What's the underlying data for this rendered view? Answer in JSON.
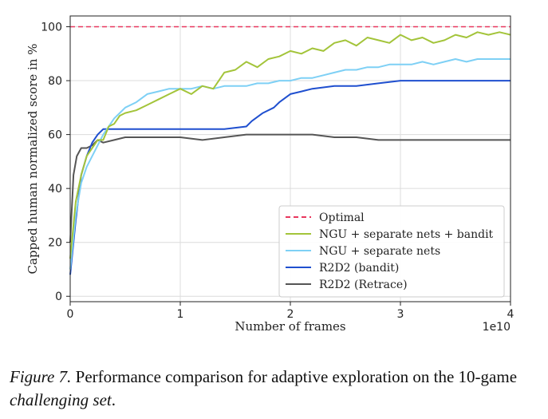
{
  "chart_data": {
    "type": "line",
    "title": "",
    "xlabel": "Number of  frames",
    "ylabel": "Capped human normalized score in %",
    "x_scale_label": "1e10",
    "xlim": [
      0,
      4
    ],
    "ylim": [
      -2,
      104
    ],
    "xticks": [
      "0",
      "1",
      "2",
      "3",
      "4"
    ],
    "yticks": [
      "0",
      "20",
      "40",
      "60",
      "80",
      "100"
    ],
    "grid": true,
    "legend_position": "lower-right",
    "series": [
      {
        "name": "Optimal",
        "color": "#e8375e",
        "style": "dashed",
        "x": [
          0,
          4
        ],
        "y": [
          100,
          100
        ]
      },
      {
        "name": "NGU + separate nets + bandit",
        "color": "#a3c43a",
        "style": "solid",
        "x": [
          0,
          0.05,
          0.1,
          0.15,
          0.2,
          0.25,
          0.3,
          0.35,
          0.4,
          0.45,
          0.5,
          0.6,
          0.7,
          0.8,
          0.9,
          1.0,
          1.1,
          1.2,
          1.3,
          1.4,
          1.5,
          1.6,
          1.7,
          1.8,
          1.9,
          2.0,
          2.1,
          2.2,
          2.3,
          2.4,
          2.5,
          2.6,
          2.7,
          2.8,
          2.9,
          3.0,
          3.1,
          3.2,
          3.3,
          3.4,
          3.5,
          3.6,
          3.7,
          3.8,
          3.9,
          4.0
        ],
        "y": [
          14,
          35,
          45,
          52,
          55,
          58,
          58,
          63,
          64,
          67,
          68,
          69,
          71,
          73,
          75,
          77,
          75,
          78,
          77,
          83,
          84,
          87,
          85,
          88,
          89,
          91,
          90,
          92,
          91,
          94,
          95,
          93,
          96,
          95,
          94,
          97,
          95,
          96,
          94,
          95,
          97,
          96,
          98,
          97,
          98,
          97
        ]
      },
      {
        "name": "NGU + separate nets",
        "color": "#7ed0f5",
        "style": "solid",
        "x": [
          0,
          0.05,
          0.1,
          0.15,
          0.2,
          0.25,
          0.3,
          0.35,
          0.4,
          0.45,
          0.5,
          0.6,
          0.7,
          0.8,
          0.9,
          1.0,
          1.1,
          1.2,
          1.3,
          1.4,
          1.5,
          1.6,
          1.7,
          1.8,
          1.9,
          2.0,
          2.1,
          2.2,
          2.3,
          2.4,
          2.5,
          2.6,
          2.7,
          2.8,
          2.9,
          3.0,
          3.1,
          3.2,
          3.3,
          3.4,
          3.5,
          3.6,
          3.7,
          3.8,
          3.9,
          4.0
        ],
        "y": [
          10,
          30,
          42,
          48,
          52,
          56,
          60,
          63,
          66,
          68,
          70,
          72,
          75,
          76,
          77,
          77,
          77,
          78,
          77,
          78,
          78,
          78,
          79,
          79,
          80,
          80,
          81,
          81,
          82,
          83,
          84,
          84,
          85,
          85,
          86,
          86,
          86,
          87,
          86,
          87,
          88,
          87,
          88,
          88,
          88,
          88
        ]
      },
      {
        "name": "R2D2 (bandit)",
        "color": "#1f4fcf",
        "style": "solid",
        "x": [
          0,
          0.05,
          0.1,
          0.15,
          0.2,
          0.25,
          0.3,
          0.35,
          0.4,
          0.5,
          0.6,
          0.8,
          1.0,
          1.2,
          1.4,
          1.6,
          1.65,
          1.75,
          1.85,
          1.9,
          2.0,
          2.1,
          2.2,
          2.4,
          2.6,
          2.8,
          3.0,
          3.2,
          3.4,
          3.6,
          3.8,
          4.0
        ],
        "y": [
          8,
          28,
          45,
          52,
          57,
          60,
          62,
          62,
          62,
          62,
          62,
          62,
          62,
          62,
          62,
          63,
          65,
          68,
          70,
          72,
          75,
          76,
          77,
          78,
          78,
          79,
          80,
          80,
          80,
          80,
          80,
          80
        ]
      },
      {
        "name": "R2D2 (Retrace)",
        "color": "#555555",
        "style": "solid",
        "x": [
          0,
          0.03,
          0.06,
          0.1,
          0.15,
          0.2,
          0.25,
          0.3,
          0.4,
          0.5,
          0.6,
          0.8,
          1.0,
          1.2,
          1.4,
          1.6,
          1.8,
          2.0,
          2.2,
          2.4,
          2.6,
          2.8,
          3.0,
          3.2,
          3.4,
          3.6,
          3.8,
          4.0
        ],
        "y": [
          20,
          45,
          52,
          55,
          55,
          56,
          58,
          57,
          58,
          59,
          59,
          59,
          59,
          58,
          59,
          60,
          60,
          60,
          60,
          59,
          59,
          58,
          58,
          58,
          58,
          58,
          58,
          58
        ]
      }
    ]
  },
  "caption": {
    "fig_label": "Figure 7.",
    "text_1": " Performance comparison for adaptive exploration on the 10-game ",
    "italic_text": "challenging set",
    "text_2": "."
  }
}
